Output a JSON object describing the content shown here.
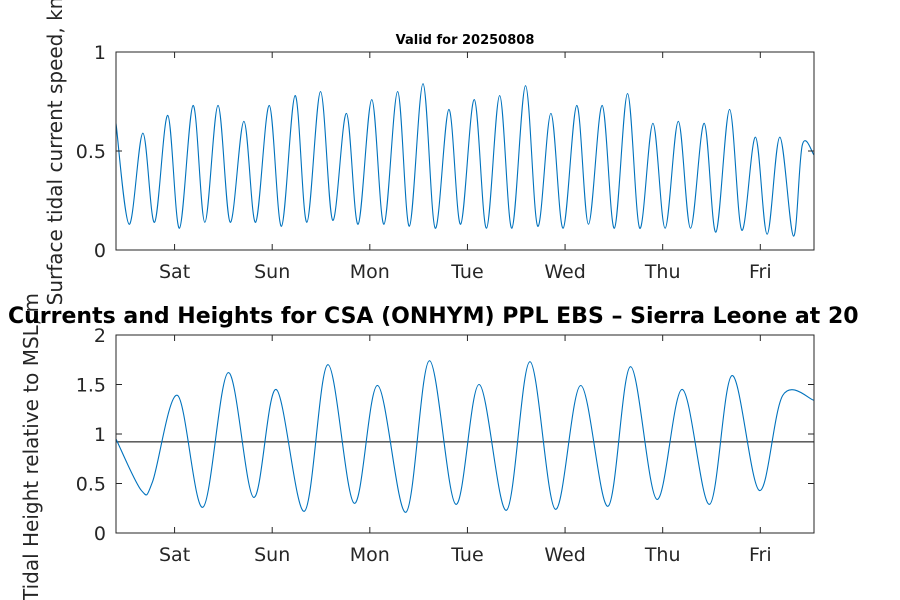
{
  "page": {
    "top_title": "Valid for 20250808",
    "overlay_title": "Currents and Heights for CSA (ONHYM) PPL EBS  – Sierra Leone at 20"
  },
  "colors": {
    "series": "#0072bd",
    "reference_line": "#000000",
    "axis": "#262626",
    "background": "#ffffff"
  },
  "chart_data": [
    {
      "type": "line",
      "title": "Valid for 20250808",
      "ylabel": "Surface tidal current speed, kn",
      "xlabel": "",
      "x_tick_labels": [
        "Sat",
        "Sun",
        "Mon",
        "Tue",
        "Wed",
        "Thu",
        "Fri"
      ],
      "x_tick_positions_days": [
        0.6,
        1.6,
        2.6,
        3.6,
        4.6,
        5.6,
        6.6
      ],
      "x_range_days": [
        0,
        7.15
      ],
      "ylim": [
        0,
        1
      ],
      "y_ticks": [
        0,
        0.5,
        1
      ],
      "y_tick_labels": [
        "0",
        "0.5",
        "1"
      ],
      "grid": false,
      "series": [
        {
          "x_days": [
            0.0,
            0.135,
            0.275,
            0.395,
            0.53,
            0.65,
            0.79,
            0.91,
            1.045,
            1.17,
            1.31,
            1.43,
            1.57,
            1.695,
            1.835,
            1.955,
            2.095,
            2.22,
            2.36,
            2.48,
            2.62,
            2.745,
            2.885,
            3.005,
            3.145,
            3.27,
            3.41,
            3.53,
            3.67,
            3.795,
            3.93,
            4.055,
            4.195,
            4.32,
            4.455,
            4.58,
            4.72,
            4.84,
            4.98,
            5.105,
            5.24,
            5.365,
            5.5,
            5.625,
            5.76,
            5.885,
            6.025,
            6.145,
            6.285,
            6.41,
            6.55,
            6.67,
            6.8,
            6.94,
            7.03,
            7.15
          ],
          "values": [
            0.64,
            0.13,
            0.59,
            0.14,
            0.68,
            0.11,
            0.73,
            0.14,
            0.73,
            0.14,
            0.65,
            0.14,
            0.73,
            0.12,
            0.78,
            0.14,
            0.8,
            0.15,
            0.69,
            0.13,
            0.76,
            0.13,
            0.8,
            0.12,
            0.84,
            0.11,
            0.71,
            0.13,
            0.76,
            0.11,
            0.78,
            0.11,
            0.83,
            0.12,
            0.69,
            0.11,
            0.73,
            0.13,
            0.73,
            0.11,
            0.79,
            0.11,
            0.64,
            0.11,
            0.65,
            0.11,
            0.64,
            0.09,
            0.71,
            0.1,
            0.57,
            0.08,
            0.57,
            0.07,
            0.53,
            0.48
          ]
        }
      ]
    },
    {
      "type": "line",
      "title": "",
      "ylabel": "Tidal Height relative to MSL, m",
      "xlabel": "",
      "x_tick_labels": [
        "Sat",
        "Sun",
        "Mon",
        "Tue",
        "Wed",
        "Thu",
        "Fri"
      ],
      "x_tick_positions_days": [
        0.6,
        1.6,
        2.6,
        3.6,
        4.6,
        5.6,
        6.6
      ],
      "x_range_days": [
        0,
        7.15
      ],
      "ylim": [
        0,
        2
      ],
      "y_ticks": [
        0,
        0.5,
        1,
        1.5,
        2
      ],
      "y_tick_labels": [
        "0",
        "0.5",
        "1",
        "1.5",
        "2"
      ],
      "grid": false,
      "reference_line": 0.92,
      "series": [
        {
          "x_days": [
            0.0,
            0.26,
            0.375,
            0.63,
            0.89,
            1.15,
            1.41,
            1.64,
            1.93,
            2.17,
            2.44,
            2.68,
            2.97,
            3.21,
            3.48,
            3.72,
            4.0,
            4.24,
            4.5,
            4.76,
            5.04,
            5.27,
            5.54,
            5.8,
            6.08,
            6.31,
            6.59,
            6.83,
            7.15
          ],
          "values": [
            0.95,
            0.43,
            0.52,
            1.39,
            0.26,
            1.62,
            0.36,
            1.45,
            0.22,
            1.7,
            0.3,
            1.49,
            0.21,
            1.74,
            0.29,
            1.5,
            0.23,
            1.73,
            0.24,
            1.49,
            0.27,
            1.68,
            0.34,
            1.45,
            0.29,
            1.59,
            0.43,
            1.39,
            1.34
          ]
        }
      ]
    }
  ]
}
